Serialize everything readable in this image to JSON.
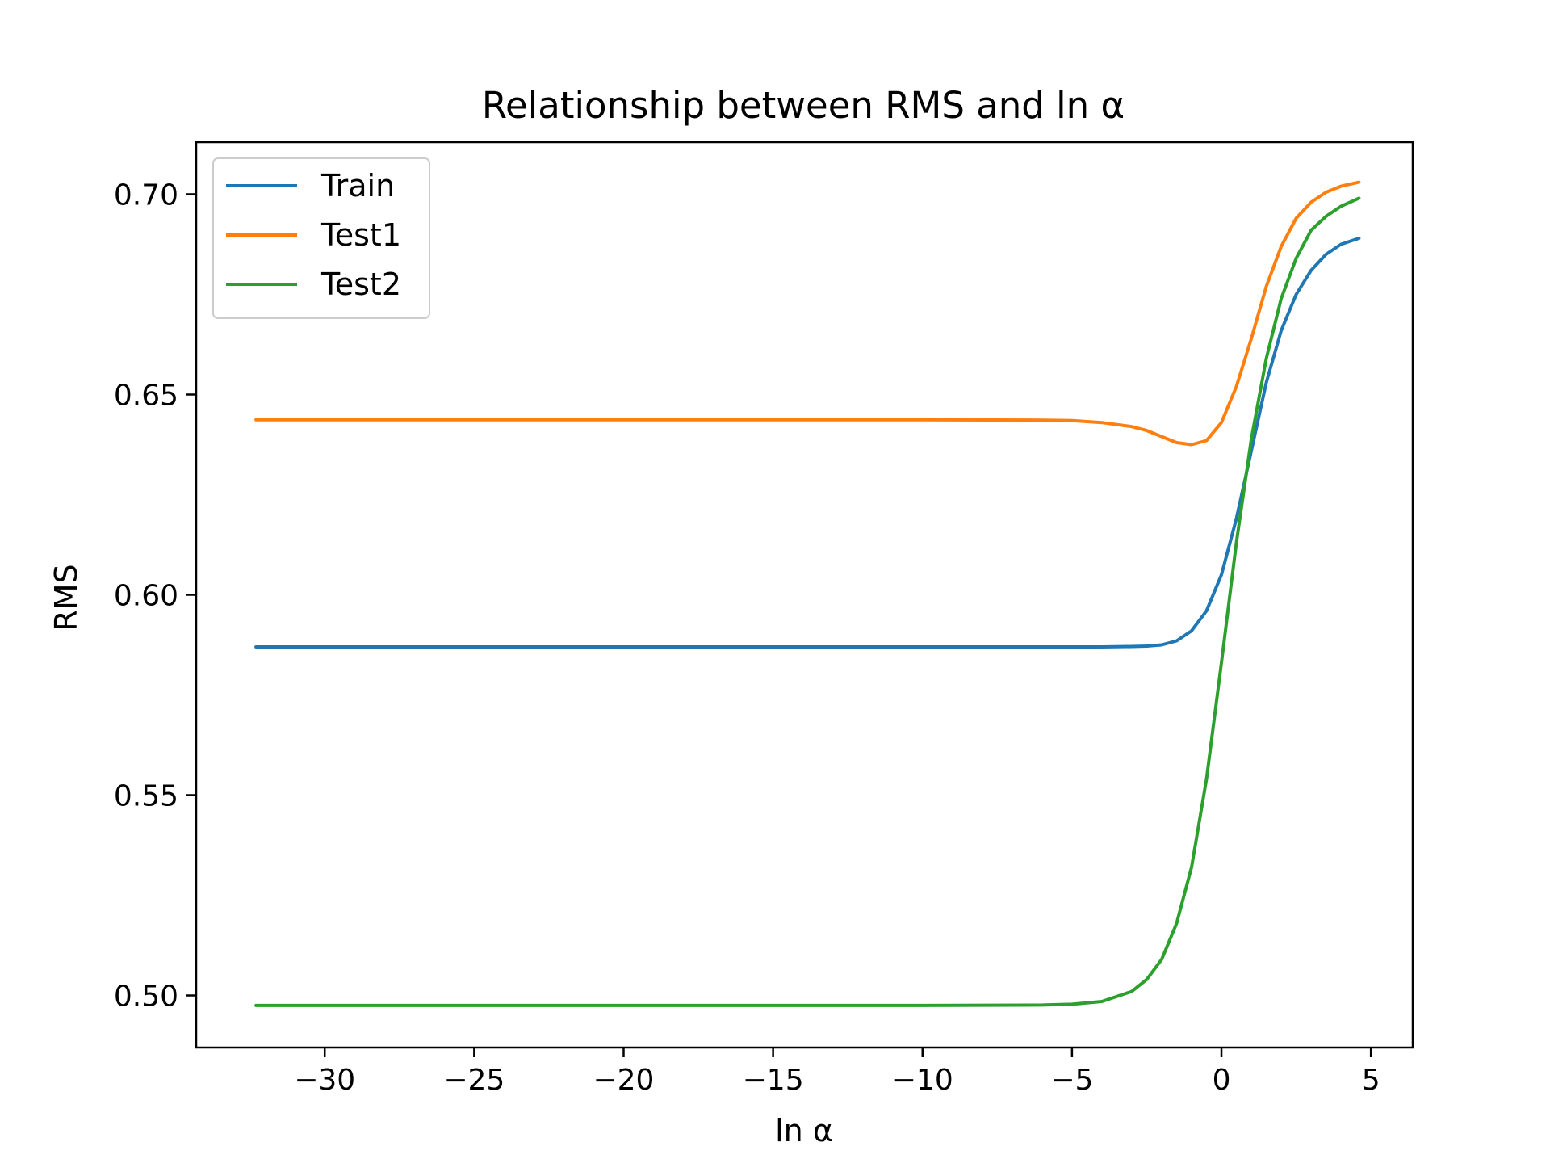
{
  "chart_data": {
    "type": "line",
    "title": "Relationship between RMS and ln α",
    "xlabel": "ln α",
    "ylabel": "RMS",
    "xlim": [
      -34.3,
      6.4
    ],
    "ylim": [
      0.487,
      0.713
    ],
    "xticks": [
      -30,
      -25,
      -20,
      -15,
      -10,
      -5,
      0,
      5
    ],
    "xtick_labels": [
      "−30",
      "−25",
      "−20",
      "−15",
      "−10",
      "−5",
      "0",
      "5"
    ],
    "yticks": [
      0.5,
      0.55,
      0.6,
      0.65,
      0.7
    ],
    "ytick_labels": [
      "0.50",
      "0.55",
      "0.60",
      "0.65",
      "0.70"
    ],
    "grid": false,
    "legend_position": "top-left",
    "x": [
      -32.3,
      -25,
      -20,
      -15,
      -10,
      -6,
      -5,
      -4,
      -3,
      -2.5,
      -2,
      -1.5,
      -1,
      -0.5,
      0,
      0.5,
      1,
      1.5,
      2,
      2.5,
      3,
      3.5,
      4,
      4.6
    ],
    "series": [
      {
        "name": "Train",
        "color": "#1f77b4",
        "values": [
          0.587,
          0.587,
          0.587,
          0.587,
          0.587,
          0.587,
          0.587,
          0.587,
          0.5871,
          0.5872,
          0.5875,
          0.5885,
          0.591,
          0.596,
          0.605,
          0.619,
          0.636,
          0.653,
          0.666,
          0.675,
          0.681,
          0.685,
          0.6875,
          0.689
        ]
      },
      {
        "name": "Test1",
        "color": "#ff7f0e",
        "values": [
          0.6437,
          0.6437,
          0.6437,
          0.6437,
          0.6437,
          0.6436,
          0.6435,
          0.643,
          0.642,
          0.641,
          0.6395,
          0.638,
          0.6375,
          0.6385,
          0.643,
          0.652,
          0.664,
          0.677,
          0.687,
          0.694,
          0.698,
          0.7005,
          0.702,
          0.703
        ]
      },
      {
        "name": "Test2",
        "color": "#2ca02c",
        "values": [
          0.4975,
          0.4975,
          0.4975,
          0.4975,
          0.4975,
          0.4976,
          0.4978,
          0.4985,
          0.501,
          0.504,
          0.509,
          0.518,
          0.532,
          0.554,
          0.583,
          0.613,
          0.639,
          0.659,
          0.674,
          0.684,
          0.691,
          0.6945,
          0.697,
          0.699
        ]
      }
    ]
  }
}
